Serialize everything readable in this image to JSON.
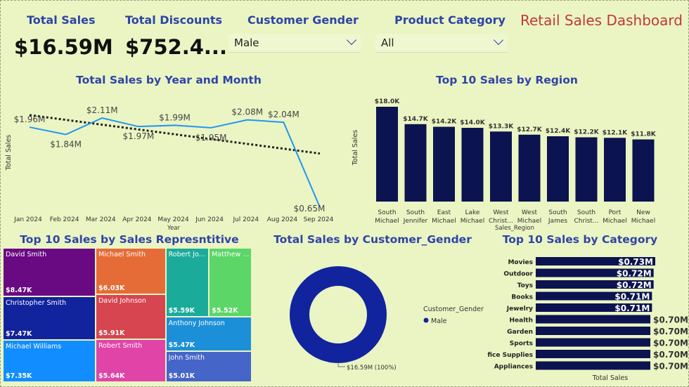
{
  "kpis": [
    {
      "title": "Total Sales",
      "value": "$16.59M"
    },
    {
      "title": "Total Discounts",
      "value": "$752.4..."
    }
  ],
  "slicers": [
    {
      "title": "Customer Gender",
      "value": "Male"
    },
    {
      "title": "Product Category",
      "value": "All"
    }
  ],
  "dashboard_title": "Retail Sales Dashboard",
  "colors": {
    "navy": "#0b1350",
    "line": "#2196f3",
    "title": "#2f44a8",
    "donut": "#12239e"
  },
  "chart_data": [
    {
      "id": "line",
      "type": "line",
      "title": "Total Sales by Year and Month",
      "xlabel": "Year",
      "ylabel": "Total Sales",
      "categories": [
        "Jan 2024",
        "Feb 2024",
        "Mar 2024",
        "Apr 2024",
        "May 2024",
        "Jun 2024",
        "Jul 2024",
        "Aug 2024",
        "Sep 2024"
      ],
      "values": [
        1.96,
        1.84,
        2.11,
        1.97,
        1.99,
        1.95,
        2.08,
        2.04,
        0.65
      ],
      "labels": [
        "$1.96M",
        "$1.84M",
        "$2.11M",
        "$1.97M",
        "$1.99M",
        "$1.95M",
        "$2.08M",
        "$2.04M",
        "$0.65M"
      ],
      "trendline": true
    },
    {
      "id": "region",
      "type": "bar",
      "title": "Top 10 Sales by Region",
      "xlabel": "Sales_Region",
      "ylabel": "Total Sales",
      "categories": [
        [
          "South",
          "Michael"
        ],
        [
          "South",
          "Jennifer"
        ],
        [
          "East",
          "Michael"
        ],
        [
          "Lake",
          "Michael"
        ],
        [
          "West",
          "Christ..."
        ],
        [
          "West",
          "Michael"
        ],
        [
          "South",
          "James"
        ],
        [
          "South",
          "Christ..."
        ],
        [
          "Port",
          "Michael"
        ],
        [
          "New",
          "Michael"
        ]
      ],
      "values": [
        18.0,
        14.7,
        14.2,
        14.0,
        13.3,
        12.7,
        12.4,
        12.2,
        12.1,
        11.8
      ],
      "labels": [
        "$18.0K",
        "$14.7K",
        "$14.2K",
        "$14.0K",
        "$13.3K",
        "$12.7K",
        "$12.4K",
        "$12.2K",
        "$12.1K",
        "$11.8K"
      ]
    },
    {
      "id": "treemap",
      "type": "treemap",
      "title": "Top 10 Sales by Sales Represntitive",
      "items": [
        {
          "name": "David Smith",
          "label": "$8.47K",
          "value": 8.47,
          "color": "#6a0a83"
        },
        {
          "name": "Christopher Smith",
          "label": "$7.47K",
          "value": 7.47,
          "color": "#12239e"
        },
        {
          "name": "Michael Williams",
          "label": "$7.35K",
          "value": 7.35,
          "color": "#118dff"
        },
        {
          "name": "Michael Smith",
          "label": "$6.03K",
          "value": 6.03,
          "color": "#e66c37"
        },
        {
          "name": "David Johnson",
          "label": "$5.91K",
          "value": 5.91,
          "color": "#d64550"
        },
        {
          "name": "Robert Smith",
          "label": "$5.64K",
          "value": 5.64,
          "color": "#e044a7"
        },
        {
          "name": "Robert Jo...",
          "label": "$5.59K",
          "value": 5.59,
          "color": "#1aab9b"
        },
        {
          "name": "Matthew ...",
          "label": "$5.52K",
          "value": 5.52,
          "color": "#5bd667"
        },
        {
          "name": "Anthony Johnson",
          "label": "$5.47K",
          "value": 5.47,
          "color": "#1c8fd9"
        },
        {
          "name": "John Smith",
          "label": "$5.01K",
          "value": 5.01,
          "color": "#4565c9"
        }
      ]
    },
    {
      "id": "donut",
      "type": "pie",
      "title": "Total Sales by Customer_Gender",
      "legend_title": "Customer_Gender",
      "slices": [
        {
          "name": "Male",
          "value": 16.59,
          "label": "$16.59M (100%)"
        }
      ]
    },
    {
      "id": "category",
      "type": "bar",
      "orientation": "horizontal",
      "title": "Top 10 Sales by Category",
      "xlabel": "Total Sales",
      "categories": [
        "Movies",
        "Outdoor",
        "Toys",
        "Books",
        "Jewelry",
        "Health",
        "Garden",
        "Sports",
        "fice Supplies",
        "Appliances"
      ],
      "values": [
        0.73,
        0.72,
        0.72,
        0.71,
        0.71,
        0.7,
        0.7,
        0.7,
        0.7,
        0.7
      ],
      "labels": [
        "$0.73M",
        "$0.72M",
        "$0.72M",
        "$0.71M",
        "$0.71M",
        "$0.70M",
        "$0.70M",
        "$0.70M",
        "$0.70M",
        "$0.70M"
      ]
    }
  ]
}
